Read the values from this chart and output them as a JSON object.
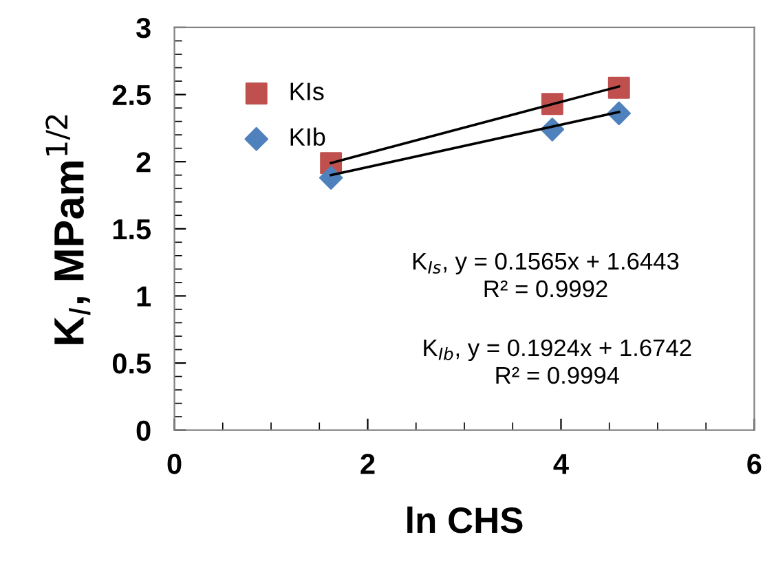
{
  "chart_data": {
    "type": "scatter",
    "xlabel": "ln CHS",
    "ylabel": "K$_{I}$, MPam$^{1/2}$",
    "xlim": [
      0,
      6
    ],
    "xticks": [
      0,
      2,
      4,
      6
    ],
    "ylim": [
      0,
      3
    ],
    "yticks": [
      0,
      0.5,
      1,
      1.5,
      2,
      2.5,
      3
    ],
    "grid": false,
    "legend": "top left",
    "series": [
      {
        "name": "KIs",
        "color": "#c0504d",
        "marker": "square",
        "x": [
          1.62,
          3.91,
          4.6
        ],
        "values": [
          1.99,
          2.43,
          2.55
        ]
      },
      {
        "name": "KIb",
        "color": "#4f81bd",
        "marker": "diamond",
        "x": [
          1.62,
          3.91,
          4.6
        ],
        "values": [
          1.88,
          2.24,
          2.36
        ]
      },
      {
        "type": "line",
        "color": "#000000",
        "marker": "none",
        "x": [
          1.62,
          4.6
        ],
        "values": [
          1.99,
          2.56
        ]
      },
      {
        "type": "line",
        "color": "#000000",
        "marker": "none",
        "x": [
          1.62,
          4.6
        ],
        "values": [
          1.9,
          2.37
        ]
      }
    ],
    "annotations": [
      "K$_{Is}$, y = 0.1565x + 1.6443\nR² = 0.9992",
      "K$_{Ib}$, y = 0.1924x + 1.6742\nR² = 0.9994"
    ]
  }
}
